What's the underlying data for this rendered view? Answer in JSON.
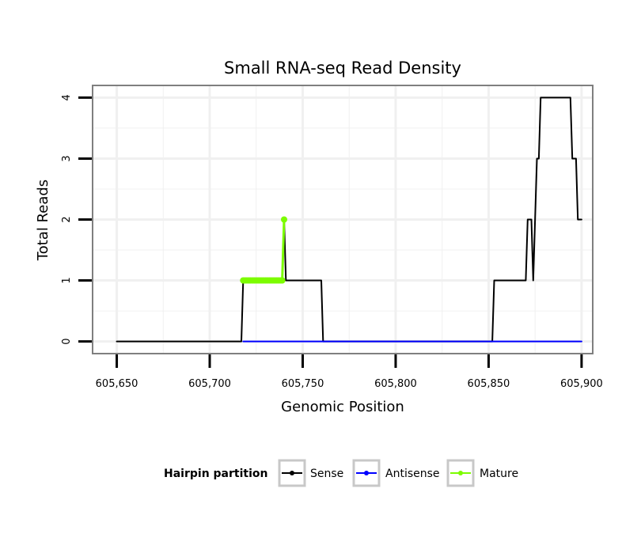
{
  "chart_data": {
    "type": "line",
    "title": "Small RNA-seq Read Density",
    "xlabel": "Genomic Position",
    "ylabel": "Total Reads",
    "xlim": [
      605637,
      605906
    ],
    "ylim": [
      -0.2,
      4.2
    ],
    "x_ticks": [
      605650,
      605700,
      605750,
      605800,
      605850,
      605900
    ],
    "x_tick_labels": [
      "605,650",
      "605,700",
      "605,750",
      "605,800",
      "605,850",
      "605,900"
    ],
    "y_ticks": [
      0,
      1,
      2,
      3,
      4
    ],
    "y_tick_labels": [
      "0",
      "1",
      "2",
      "3",
      "4"
    ],
    "grid": true,
    "legend": {
      "title": "Hairpin partition",
      "position": "bottom"
    },
    "series": [
      {
        "name": "Sense",
        "color": "#000000",
        "style": "step-line",
        "points": [
          [
            605650,
            0
          ],
          [
            605717,
            0
          ],
          [
            605718,
            1
          ],
          [
            605739,
            1
          ],
          [
            605740,
            2
          ],
          [
            605741,
            1
          ],
          [
            605760,
            1
          ],
          [
            605761,
            0
          ],
          [
            605852,
            0
          ],
          [
            605853,
            1
          ],
          [
            605870,
            1
          ],
          [
            605871,
            2
          ],
          [
            605873,
            2
          ],
          [
            605874,
            1
          ],
          [
            605876,
            3
          ],
          [
            605877,
            3
          ],
          [
            605878,
            4
          ],
          [
            605894,
            4
          ],
          [
            605895,
            3
          ],
          [
            605897,
            3
          ],
          [
            605898,
            2
          ],
          [
            605900,
            2
          ]
        ]
      },
      {
        "name": "Antisense",
        "color": "#0000ff",
        "style": "line",
        "points": [
          [
            605718,
            0
          ],
          [
            605900,
            0
          ]
        ]
      },
      {
        "name": "Mature",
        "color": "#7cfc00",
        "style": "line-with-points",
        "points": [
          [
            605718,
            1
          ],
          [
            605719,
            1
          ],
          [
            605720,
            1
          ],
          [
            605721,
            1
          ],
          [
            605722,
            1
          ],
          [
            605723,
            1
          ],
          [
            605724,
            1
          ],
          [
            605725,
            1
          ],
          [
            605726,
            1
          ],
          [
            605727,
            1
          ],
          [
            605728,
            1
          ],
          [
            605729,
            1
          ],
          [
            605730,
            1
          ],
          [
            605731,
            1
          ],
          [
            605732,
            1
          ],
          [
            605733,
            1
          ],
          [
            605734,
            1
          ],
          [
            605735,
            1
          ],
          [
            605736,
            1
          ],
          [
            605737,
            1
          ],
          [
            605738,
            1
          ],
          [
            605739,
            1
          ],
          [
            605740,
            2
          ]
        ]
      }
    ]
  }
}
